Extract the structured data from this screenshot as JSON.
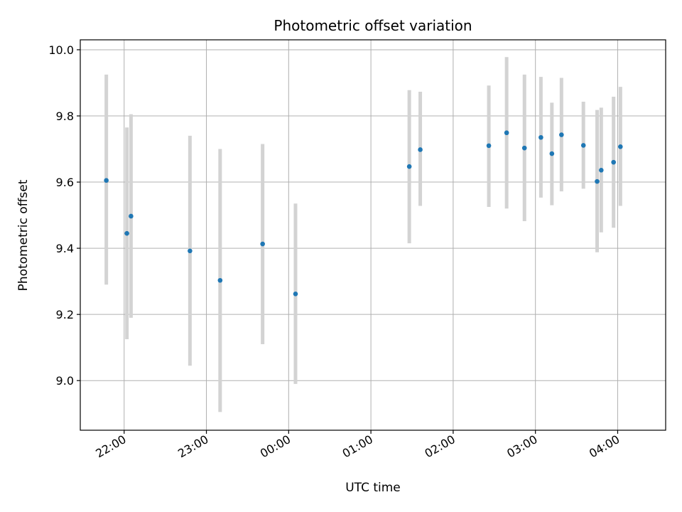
{
  "chart_data": {
    "type": "scatter",
    "title": "Photometric offset variation",
    "xlabel": "UTC time",
    "ylabel": "Photometric offset",
    "x_axis": "time",
    "x_start": "21:28",
    "x_end": "04:35",
    "xticks": [
      "22:00",
      "23:00",
      "00:00",
      "01:00",
      "02:00",
      "03:00",
      "04:00"
    ],
    "ylim": [
      8.85,
      10.03
    ],
    "yticks": [
      "9.0",
      "9.2",
      "9.4",
      "9.6",
      "9.8",
      "10.0"
    ],
    "grid": true,
    "colors": {
      "point": "#1f77b4",
      "errorbar": "#d3d3d3",
      "grid": "#b0b0b0"
    },
    "series": [
      {
        "points": [
          {
            "x": "21:47",
            "y": 9.605,
            "low": 9.29,
            "high": 9.925
          },
          {
            "x": "22:02",
            "y": 9.445,
            "low": 9.125,
            "high": 9.765
          },
          {
            "x": "22:05",
            "y": 9.497,
            "low": 9.19,
            "high": 9.805
          },
          {
            "x": "22:48",
            "y": 9.392,
            "low": 9.045,
            "high": 9.74
          },
          {
            "x": "23:10",
            "y": 9.303,
            "low": 8.905,
            "high": 9.7
          },
          {
            "x": "23:41",
            "y": 9.413,
            "low": 9.11,
            "high": 9.715
          },
          {
            "x": "00:05",
            "y": 9.262,
            "low": 8.99,
            "high": 9.535
          },
          {
            "x": "01:28",
            "y": 9.647,
            "low": 9.415,
            "high": 9.878
          },
          {
            "x": "01:36",
            "y": 9.698,
            "low": 9.528,
            "high": 9.873
          },
          {
            "x": "02:26",
            "y": 9.71,
            "low": 9.525,
            "high": 9.892
          },
          {
            "x": "02:39",
            "y": 9.749,
            "low": 9.52,
            "high": 9.978
          },
          {
            "x": "02:52",
            "y": 9.703,
            "low": 9.482,
            "high": 9.925
          },
          {
            "x": "03:04",
            "y": 9.735,
            "low": 9.553,
            "high": 9.918
          },
          {
            "x": "03:12",
            "y": 9.686,
            "low": 9.53,
            "high": 9.84
          },
          {
            "x": "03:19",
            "y": 9.743,
            "low": 9.572,
            "high": 9.915
          },
          {
            "x": "03:35",
            "y": 9.711,
            "low": 9.58,
            "high": 9.843
          },
          {
            "x": "03:45",
            "y": 9.602,
            "low": 9.388,
            "high": 9.818
          },
          {
            "x": "03:48",
            "y": 9.636,
            "low": 9.448,
            "high": 9.825
          },
          {
            "x": "03:57",
            "y": 9.66,
            "low": 9.462,
            "high": 9.858
          },
          {
            "x": "04:02",
            "y": 9.707,
            "low": 9.528,
            "high": 9.888
          }
        ]
      }
    ]
  }
}
